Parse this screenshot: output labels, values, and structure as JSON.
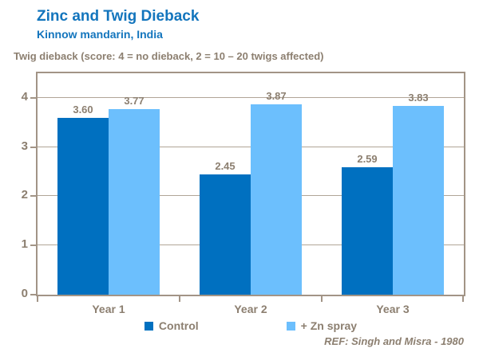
{
  "chart_data": {
    "type": "bar",
    "title": "Zinc and Twig Dieback",
    "subtitle": "Kinnow mandarin, India",
    "axis_caption": "Twig dieback (score: 4 = no dieback, 2 = 10 – 20 twigs affected)",
    "categories": [
      "Year 1",
      "Year 2",
      "Year 3"
    ],
    "series": [
      {
        "name": "Control",
        "color": "#0070C0",
        "values": [
          3.6,
          2.45,
          2.59
        ],
        "labels": [
          "3.60",
          "2.45",
          "2.59"
        ]
      },
      {
        "name": "+ Zn spray",
        "color": "#6CBFFD",
        "values": [
          3.77,
          3.87,
          3.83
        ],
        "labels": [
          "3.77",
          "3.87",
          "3.83"
        ]
      }
    ],
    "ylim": [
      0,
      4.5
    ],
    "yticks": [
      0,
      1,
      2,
      3,
      4
    ],
    "grid": true,
    "legend_position": "bottom",
    "reference": "REF: Singh and Misra - 1980"
  },
  "colors": {
    "title_blue": "#1375BD",
    "control_bar": "#0070C0",
    "zn_spray_bar": "#6CBFFD",
    "label_text": "#8C7F70",
    "gridline": "#B1A597",
    "plot_border": "#A29486"
  }
}
